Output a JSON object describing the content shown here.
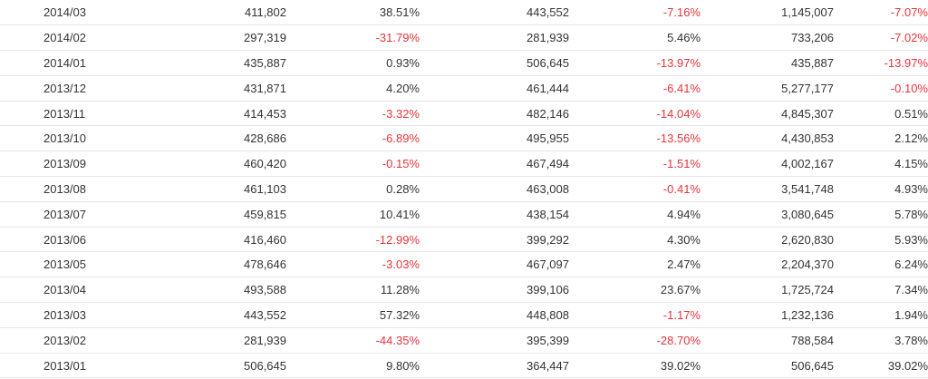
{
  "table": {
    "rows": [
      {
        "month": "2014/03",
        "v1": "411,802",
        "p1": "38.51%",
        "v2": "443,552",
        "p2": "-7.16%",
        "v3": "1,145,007",
        "p3": "-7.07%"
      },
      {
        "month": "2014/02",
        "v1": "297,319",
        "p1": "-31.79%",
        "v2": "281,939",
        "p2": "5.46%",
        "v3": "733,206",
        "p3": "-7.02%"
      },
      {
        "month": "2014/01",
        "v1": "435,887",
        "p1": "0.93%",
        "v2": "506,645",
        "p2": "-13.97%",
        "v3": "435,887",
        "p3": "-13.97%"
      },
      {
        "month": "2013/12",
        "v1": "431,871",
        "p1": "4.20%",
        "v2": "461,444",
        "p2": "-6.41%",
        "v3": "5,277,177",
        "p3": "-0.10%"
      },
      {
        "month": "2013/11",
        "v1": "414,453",
        "p1": "-3.32%",
        "v2": "482,146",
        "p2": "-14.04%",
        "v3": "4,845,307",
        "p3": "0.51%"
      },
      {
        "month": "2013/10",
        "v1": "428,686",
        "p1": "-6.89%",
        "v2": "495,955",
        "p2": "-13.56%",
        "v3": "4,430,853",
        "p3": "2.12%"
      },
      {
        "month": "2013/09",
        "v1": "460,420",
        "p1": "-0.15%",
        "v2": "467,494",
        "p2": "-1.51%",
        "v3": "4,002,167",
        "p3": "4.15%"
      },
      {
        "month": "2013/08",
        "v1": "461,103",
        "p1": "0.28%",
        "v2": "463,008",
        "p2": "-0.41%",
        "v3": "3,541,748",
        "p3": "4.93%"
      },
      {
        "month": "2013/07",
        "v1": "459,815",
        "p1": "10.41%",
        "v2": "438,154",
        "p2": "4.94%",
        "v3": "3,080,645",
        "p3": "5.78%"
      },
      {
        "month": "2013/06",
        "v1": "416,460",
        "p1": "-12.99%",
        "v2": "399,292",
        "p2": "4.30%",
        "v3": "2,620,830",
        "p3": "5.93%"
      },
      {
        "month": "2013/05",
        "v1": "478,646",
        "p1": "-3.03%",
        "v2": "467,097",
        "p2": "2.47%",
        "v3": "2,204,370",
        "p3": "6.24%"
      },
      {
        "month": "2013/04",
        "v1": "493,588",
        "p1": "11.28%",
        "v2": "399,106",
        "p2": "23.67%",
        "v3": "1,725,724",
        "p3": "7.34%"
      },
      {
        "month": "2013/03",
        "v1": "443,552",
        "p1": "57.32%",
        "v2": "448,808",
        "p2": "-1.17%",
        "v3": "1,232,136",
        "p3": "1.94%"
      },
      {
        "month": "2013/02",
        "v1": "281,939",
        "p1": "-44.35%",
        "v2": "395,399",
        "p2": "-28.70%",
        "v3": "788,584",
        "p3": "3.78%"
      },
      {
        "month": "2013/01",
        "v1": "506,645",
        "p1": "9.80%",
        "v2": "364,447",
        "p2": "39.02%",
        "v3": "506,645",
        "p3": "39.02%"
      }
    ]
  },
  "colors": {
    "text": "#333333",
    "negative": "#e8333a",
    "row_divider": "#e6e6e6"
  }
}
